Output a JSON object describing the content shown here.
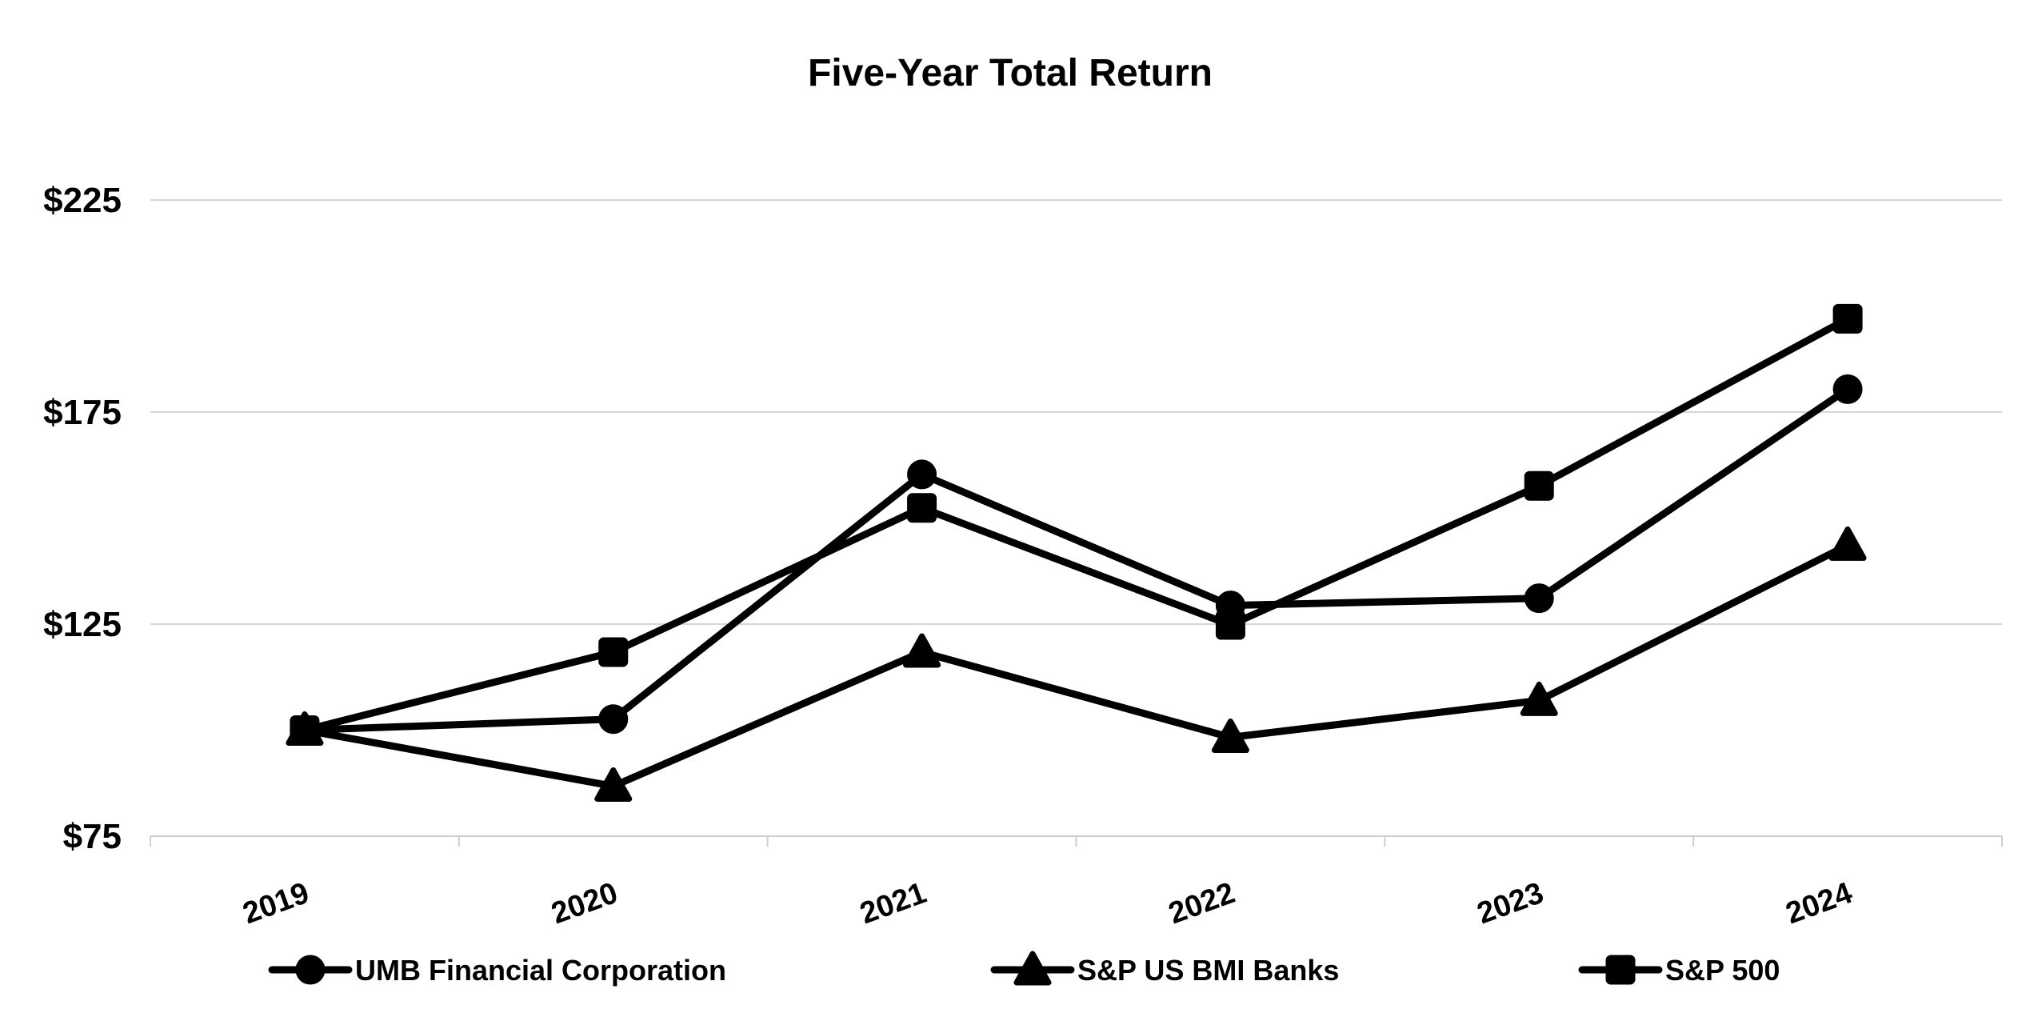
{
  "chart_data": {
    "type": "line",
    "title": "Five-Year Total Return",
    "categories": [
      "2019",
      "2020",
      "2021",
      "2022",
      "2023",
      "2024"
    ],
    "series": [
      {
        "name": "UMB Financial Corporation",
        "marker": "circle",
        "values": [
          100,
          102.6,
          160.3,
          129.4,
          131.1,
          180.4
        ]
      },
      {
        "name": "S&P US BMI Banks",
        "marker": "triangle",
        "values": [
          100,
          86.8,
          118.4,
          98.3,
          107.0,
          143.6
        ]
      },
      {
        "name": "S&P 500",
        "marker": "square",
        "values": [
          100,
          118.4,
          152.4,
          124.8,
          157.6,
          197.0
        ]
      }
    ],
    "ylim": [
      75,
      225
    ],
    "yticks": [
      {
        "value": 225,
        "label": "$225"
      },
      {
        "value": 175,
        "label": "$175"
      },
      {
        "value": 125,
        "label": "$125"
      },
      {
        "value": 75,
        "label": "$75"
      }
    ],
    "xlabel": "",
    "ylabel": "",
    "grid": "horizontal",
    "legend_position": "bottom",
    "colors": {
      "series": "#000000",
      "gridline": "#d6d6d6",
      "background": "#ffffff",
      "text": "#000000"
    }
  }
}
